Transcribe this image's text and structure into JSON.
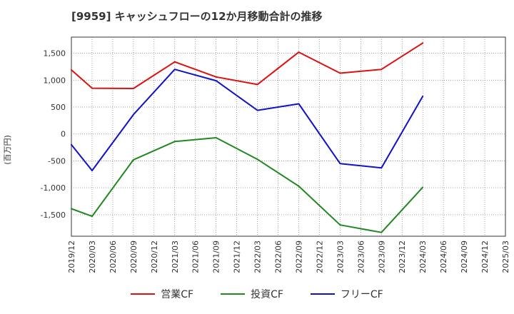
{
  "chart_data": {
    "type": "line",
    "title": "[9959]  キャッシュフローの12か月移動合計の推移",
    "ylabel": "(百万円)",
    "xlabel": "",
    "ylim": [
      -1900,
      1800
    ],
    "yticks": [
      1500,
      1000,
      500,
      0,
      -500,
      -1000,
      -1500
    ],
    "ytick_labels": [
      "1,500",
      "1,000",
      "500",
      "0",
      "-500",
      "-1,000",
      "-1,500"
    ],
    "categories": [
      "2019/12",
      "2020/03",
      "2020/06",
      "2020/09",
      "2020/12",
      "2021/03",
      "2021/06",
      "2021/09",
      "2021/12",
      "2022/03",
      "2022/06",
      "2022/09",
      "2022/12",
      "2023/03",
      "2023/06",
      "2023/09",
      "2023/12",
      "2024/03",
      "2024/06",
      "2024/09",
      "2024/12",
      "2025/03"
    ],
    "series": [
      {
        "name": "営業CF",
        "color": "#dd1111",
        "values": [
          1190,
          850,
          null,
          845,
          null,
          1340,
          null,
          1060,
          null,
          920,
          null,
          1520,
          null,
          1130,
          null,
          1200,
          null,
          1690,
          null,
          null,
          null,
          null
        ]
      },
      {
        "name": "投資CF",
        "color": "#228822",
        "values": [
          -1390,
          -1530,
          null,
          -480,
          null,
          -140,
          null,
          -70,
          null,
          -470,
          null,
          -970,
          null,
          -1690,
          null,
          -1830,
          null,
          -990,
          null,
          null,
          null,
          null
        ]
      },
      {
        "name": "フリーCF",
        "color": "#1111cc",
        "values": [
          -200,
          -680,
          null,
          360,
          null,
          1200,
          null,
          990,
          null,
          440,
          null,
          560,
          null,
          -550,
          null,
          -630,
          null,
          700,
          null,
          null,
          null,
          null
        ]
      }
    ],
    "grid": true,
    "legend": "bottom"
  }
}
